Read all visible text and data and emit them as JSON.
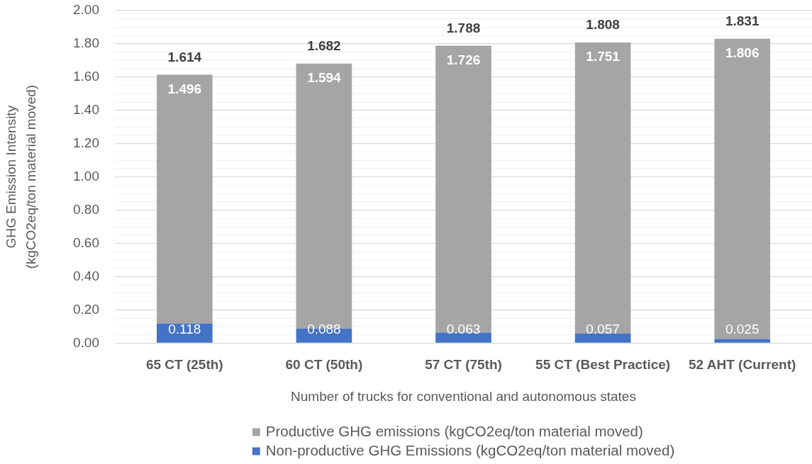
{
  "chart_data": {
    "type": "bar",
    "stacked": true,
    "categories": [
      "65 CT (25th)",
      "60 CT (50th)",
      "57 CT (75th)",
      "55 CT (Best Practice)",
      "52 AHT (Current)"
    ],
    "xlabel": "Number of trucks for conventional and autonomous states",
    "ylabel": "GHG Emission Intensity (kgCO2eq/ton material moved)",
    "ylim": [
      0,
      2
    ],
    "yticks": [
      {
        "value": 0,
        "label": "0.00"
      },
      {
        "value": 0.05,
        "label": null
      },
      {
        "value": 0.1,
        "label": null
      },
      {
        "value": 0.15,
        "label": null
      },
      {
        "value": 0.2,
        "label": "0.20"
      },
      {
        "value": 0.25,
        "label": null
      },
      {
        "value": 0.3,
        "label": null
      },
      {
        "value": 0.35,
        "label": null
      },
      {
        "value": 0.4,
        "label": "0.40"
      },
      {
        "value": 0.45,
        "label": null
      },
      {
        "value": 0.5,
        "label": null
      },
      {
        "value": 0.55,
        "label": null
      },
      {
        "value": 0.6,
        "label": "0.60"
      },
      {
        "value": 0.65,
        "label": null
      },
      {
        "value": 0.7,
        "label": null
      },
      {
        "value": 0.75,
        "label": null
      },
      {
        "value": 0.8,
        "label": "0.80"
      },
      {
        "value": 0.85,
        "label": null
      },
      {
        "value": 0.9,
        "label": null
      },
      {
        "value": 0.95,
        "label": null
      },
      {
        "value": 1,
        "label": "1.00"
      },
      {
        "value": 1.05,
        "label": null
      },
      {
        "value": 1.1,
        "label": null
      },
      {
        "value": 1.15,
        "label": null
      },
      {
        "value": 1.2,
        "label": "1.20"
      },
      {
        "value": 1.25,
        "label": null
      },
      {
        "value": 1.3,
        "label": null
      },
      {
        "value": 1.35,
        "label": null
      },
      {
        "value": 1.4,
        "label": "1.40"
      },
      {
        "value": 1.45,
        "label": null
      },
      {
        "value": 1.5,
        "label": null
      },
      {
        "value": 1.55,
        "label": null
      },
      {
        "value": 1.6,
        "label": "1.60"
      },
      {
        "value": 1.65,
        "label": null
      },
      {
        "value": 1.7,
        "label": null
      },
      {
        "value": 1.75,
        "label": null
      },
      {
        "value": 1.8,
        "label": "1.80"
      },
      {
        "value": 1.85,
        "label": null
      },
      {
        "value": 1.9,
        "label": null
      },
      {
        "value": 1.95,
        "label": null
      },
      {
        "value": 2,
        "label": "2.00"
      }
    ],
    "grid": "y",
    "legend": "bottom",
    "data_labels": true,
    "totals": [
      "1.614",
      "1.682",
      "1.788",
      "1.808",
      "1.831"
    ],
    "series": [
      {
        "name": "Non-productive GHG Emissions (kgCO2eq/ton material moved)",
        "color": "#4472c4",
        "values": [
          0.118,
          0.088,
          0.063,
          0.057,
          0.025
        ]
      },
      {
        "name": "Productive GHG emissions (kgCO2eq/ton material moved)",
        "color": "#a5a5a5",
        "values": [
          1.496,
          1.594,
          1.726,
          1.751,
          1.806
        ]
      }
    ]
  }
}
